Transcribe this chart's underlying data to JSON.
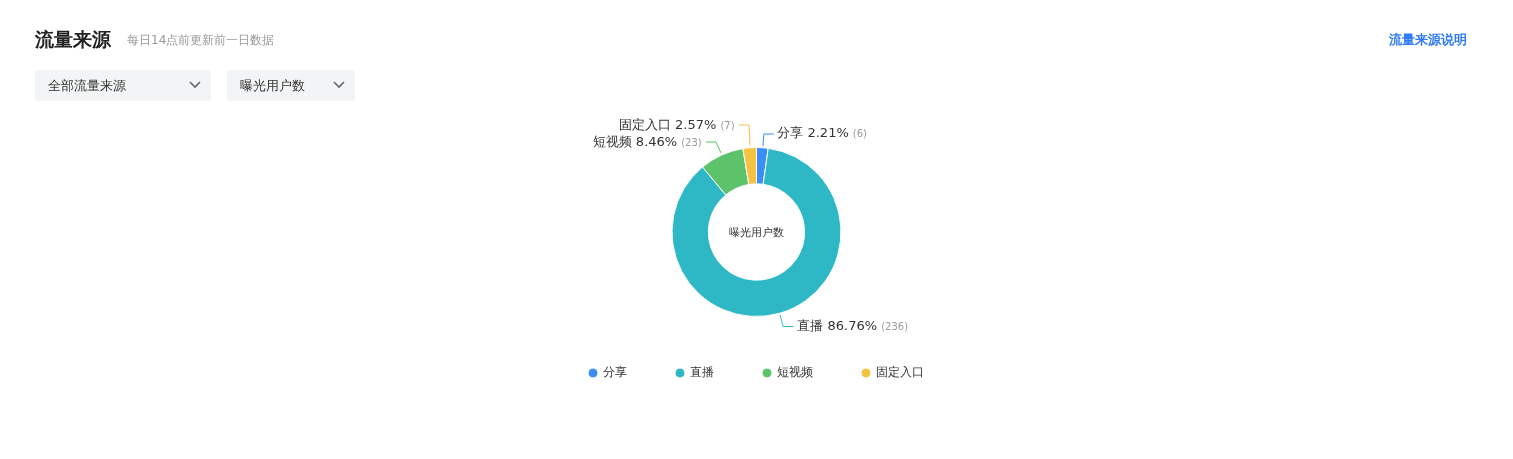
{
  "chart_data": {
    "type": "donut",
    "title": "流量来源",
    "subtitle": "每日14点前更新前一日数据",
    "categories": [
      "分享",
      "直播",
      "短视频",
      "固定入口"
    ],
    "values": [
      2.21,
      86.76,
      8.46,
      2.57
    ],
    "value_labels": [
      "2.21% (6)",
      "86.76% (236)",
      "8.46% (23)",
      "2.57% (7)"
    ],
    "colors": [
      "#3a8ef6",
      "#2eb8c6",
      "#5cc36a",
      "#f5c242"
    ],
    "legend": "bottom",
    "annotations": [
      "流量来源说明",
      "全部流量来源",
      "曝光用户数",
      "曝光用户数"
    ]
  }
}
